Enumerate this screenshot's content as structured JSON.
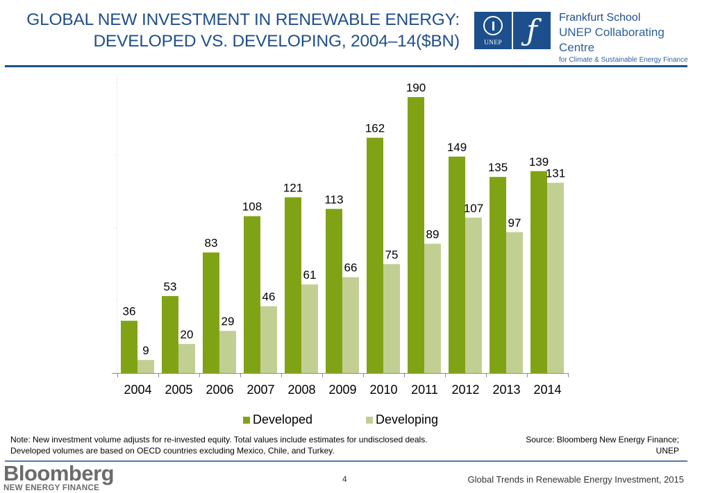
{
  "header": {
    "title_line1": "GLOBAL NEW INVESTMENT IN RENEWABLE ENERGY:",
    "title_line2": "DEVELOPED VS. DEVELOPING, 2004–14($BN)",
    "unep_logo_text": "UNEP",
    "fs_logo_glyph": "ƒ",
    "org_line1": "Frankfurt School",
    "org_line2": "UNEP Collaborating Centre",
    "org_line3": "for Climate & Sustainable Energy Finance"
  },
  "chart_data": {
    "type": "bar",
    "title": "Global New Investment in Renewable Energy: Developed vs. Developing, 2004–14 ($BN)",
    "xlabel": "",
    "ylabel": "",
    "ylim": [
      0,
      200
    ],
    "grid": false,
    "categories": [
      "2004",
      "2005",
      "2006",
      "2007",
      "2008",
      "2009",
      "2010",
      "2011",
      "2012",
      "2013",
      "2014"
    ],
    "series": [
      {
        "name": "Developed",
        "color": "#80a315",
        "values": [
          36,
          53,
          83,
          108,
          121,
          113,
          162,
          190,
          149,
          135,
          139
        ]
      },
      {
        "name": "Developing",
        "color": "#c2cf92",
        "values": [
          9,
          20,
          29,
          46,
          61,
          66,
          75,
          89,
          107,
          97,
          131
        ]
      }
    ],
    "legend": {
      "placement": "bottom"
    },
    "data_labels": true
  },
  "footer": {
    "note_line1": "Note: New investment volume adjusts for re-invested equity.  Total values include estimates for undisclosed deals.",
    "note_line2": "Developed volumes are based on OECD countries excluding Mexico, Chile, and Turkey.",
    "source_line1": "Source: Bloomberg New Energy Finance;",
    "source_line2": "UNEP",
    "brand_line1": "Bloomberg",
    "brand_line2": "NEW ENERGY FINANCE",
    "page_number": "4",
    "report_title": "Global Trends in Renewable Energy Investment, 2015"
  }
}
